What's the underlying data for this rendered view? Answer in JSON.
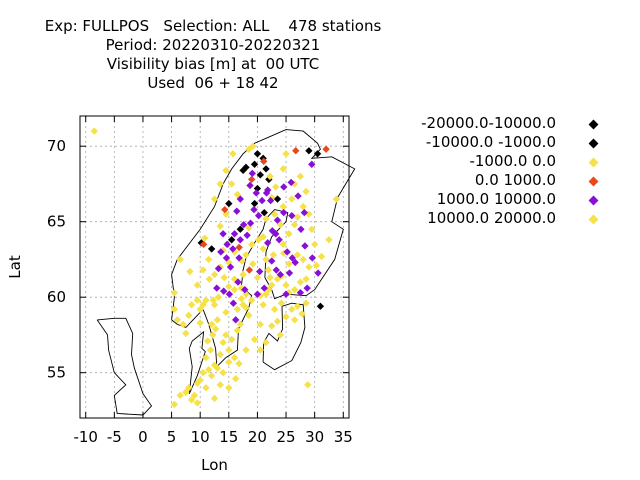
{
  "title_lines": [
    "Exp: FULLPOS   Selection: ALL    478 stations",
    "Period: 20220310-20220321",
    "Visibility bias [m] at  00 UTC",
    "Used  06 + 18 42"
  ],
  "chart_data": {
    "type": "scatter",
    "xlabel": "Lon",
    "ylabel": "Lat",
    "xlim": [
      -11,
      36
    ],
    "ylim": [
      52,
      72
    ],
    "xticks": [
      -10,
      -5,
      0,
      5,
      10,
      15,
      20,
      25,
      30,
      35
    ],
    "yticks": [
      55,
      60,
      65,
      70
    ],
    "grid": true,
    "legend_position": "right",
    "series": [
      {
        "name": "-20000.0-10000.0",
        "color": "#000000",
        "points": []
      },
      {
        "name": "-10000.0 -1000.0",
        "color": "#000000",
        "points": [
          [
            10.2,
            63.6
          ],
          [
            12,
            63.2
          ],
          [
            15.5,
            63.8
          ],
          [
            17.5,
            68.4
          ],
          [
            18,
            68.6
          ],
          [
            19.5,
            68.8
          ],
          [
            20,
            69.5
          ],
          [
            21,
            69.2
          ],
          [
            21.5,
            68.5
          ],
          [
            22,
            67.8
          ],
          [
            23.5,
            66.5
          ],
          [
            19.5,
            66.2
          ],
          [
            20,
            67.2
          ],
          [
            17,
            64.5
          ],
          [
            15,
            66.2
          ],
          [
            30.5,
            69.5
          ],
          [
            29,
            69.7
          ],
          [
            31,
            59.4
          ],
          [
            20.5,
            68.1
          ],
          [
            21.2,
            65.6
          ]
        ]
      },
      {
        "name": "-1000.0 0.0",
        "color": "#f5e14a",
        "points": [
          [
            -8.5,
            71
          ],
          [
            5.5,
            52.9
          ],
          [
            6.5,
            53.5
          ],
          [
            7.5,
            53.7
          ],
          [
            8,
            54
          ],
          [
            9,
            53.5
          ],
          [
            9.5,
            54.3
          ],
          [
            10,
            54.5
          ],
          [
            10.5,
            55
          ],
          [
            11,
            54
          ],
          [
            11.5,
            55.2
          ],
          [
            12,
            54.8
          ],
          [
            12.5,
            55.5
          ],
          [
            13,
            55.3
          ],
          [
            13.5,
            54.2
          ],
          [
            14,
            55
          ],
          [
            12.5,
            53.3
          ],
          [
            9.5,
            53
          ],
          [
            8.5,
            53.2
          ],
          [
            11,
            56
          ],
          [
            11.8,
            56.5
          ],
          [
            12.2,
            57.5
          ],
          [
            12,
            58.2
          ],
          [
            13,
            58.5
          ],
          [
            14,
            57
          ],
          [
            14.5,
            57.5
          ],
          [
            15,
            56.5
          ],
          [
            16,
            56
          ],
          [
            15.5,
            57.2
          ],
          [
            16.5,
            57.8
          ],
          [
            17,
            58.2
          ],
          [
            16.5,
            59.2
          ],
          [
            17.5,
            59.5
          ],
          [
            18,
            59.3
          ],
          [
            18.5,
            58.8
          ],
          [
            18,
            60.2
          ],
          [
            17.2,
            60.6
          ],
          [
            16,
            60.5
          ],
          [
            15,
            60.7
          ],
          [
            14.2,
            61.3
          ],
          [
            13.2,
            60
          ],
          [
            12.5,
            59.5
          ],
          [
            11,
            59.8
          ],
          [
            10.5,
            59.5
          ],
          [
            10,
            59.2
          ],
          [
            9.5,
            59.8
          ],
          [
            8.5,
            59.5
          ],
          [
            8,
            58.8
          ],
          [
            7,
            58.2
          ],
          [
            6,
            58.5
          ],
          [
            5.5,
            59.2
          ],
          [
            5.5,
            60.3
          ],
          [
            9.5,
            60.8
          ],
          [
            10.5,
            61.8
          ],
          [
            11.5,
            62.5
          ],
          [
            12.5,
            61.5
          ],
          [
            13.5,
            62
          ],
          [
            14,
            63.1
          ],
          [
            15,
            62.3
          ],
          [
            16,
            61.2
          ],
          [
            17.5,
            61.5
          ],
          [
            18,
            62.8
          ],
          [
            19,
            63.5
          ],
          [
            20.2,
            63.8
          ],
          [
            21,
            63.2
          ],
          [
            21.5,
            62.5
          ],
          [
            22.2,
            61.3
          ],
          [
            22,
            60.5
          ],
          [
            21.5,
            60.2
          ],
          [
            22.5,
            60.8
          ],
          [
            23.5,
            61.2
          ],
          [
            24.2,
            61.4
          ],
          [
            25,
            60.8
          ],
          [
            25.5,
            60.3
          ],
          [
            26.5,
            60.5
          ],
          [
            27.5,
            61
          ],
          [
            28.5,
            61.2
          ],
          [
            29,
            62
          ],
          [
            28,
            62.5
          ],
          [
            27,
            62.8
          ],
          [
            25.5,
            62.2
          ],
          [
            24.5,
            63.5
          ],
          [
            25.5,
            64.2
          ],
          [
            26.5,
            64.8
          ],
          [
            27,
            65.3
          ],
          [
            28,
            66
          ],
          [
            29,
            65.5
          ],
          [
            29.5,
            64.5
          ],
          [
            30,
            63.5
          ],
          [
            26.5,
            67.5
          ],
          [
            27.5,
            68
          ],
          [
            25,
            69.5
          ],
          [
            24.5,
            68.5
          ],
          [
            23.2,
            67.3
          ],
          [
            22.5,
            66.6
          ],
          [
            26,
            66.5
          ],
          [
            28.5,
            67
          ],
          [
            24.5,
            66
          ],
          [
            23,
            65.5
          ],
          [
            24,
            64.8
          ],
          [
            21.5,
            65.2
          ],
          [
            22.2,
            68
          ],
          [
            19.2,
            70
          ],
          [
            18.5,
            69.8
          ],
          [
            15.7,
            69.5
          ],
          [
            14.5,
            68.4
          ],
          [
            13.5,
            67.5
          ],
          [
            12.5,
            66.5
          ],
          [
            15.5,
            67.5
          ],
          [
            16.5,
            66.8
          ],
          [
            14.5,
            65.5
          ],
          [
            13.5,
            64.7
          ],
          [
            16,
            63
          ],
          [
            17.3,
            62.4
          ],
          [
            7.5,
            57.6
          ],
          [
            11.3,
            57.1
          ],
          [
            13.5,
            56.2
          ],
          [
            15,
            55.7
          ],
          [
            16.2,
            54.6
          ],
          [
            18,
            56.5
          ],
          [
            19.5,
            57.2
          ],
          [
            20.5,
            56.5
          ],
          [
            21.5,
            57
          ],
          [
            22.5,
            58.1
          ],
          [
            24,
            57.5
          ],
          [
            23.5,
            58.4
          ],
          [
            25,
            58.7
          ],
          [
            26,
            59.2
          ],
          [
            27,
            59.4
          ],
          [
            28.5,
            59.6
          ],
          [
            24.2,
            59.6
          ],
          [
            23,
            59.2
          ],
          [
            21,
            59.5
          ],
          [
            20.5,
            60.1
          ],
          [
            20,
            61.3
          ],
          [
            19.2,
            62.2
          ],
          [
            22.8,
            62.8
          ],
          [
            18.5,
            64.6
          ],
          [
            21,
            64
          ],
          [
            28.8,
            54.2
          ],
          [
            33.8,
            66.5
          ],
          [
            32.5,
            63.8
          ],
          [
            31.2,
            62.7
          ],
          [
            30.3,
            62.1
          ],
          [
            15,
            54
          ],
          [
            16.8,
            55.6
          ],
          [
            12.7,
            57.9
          ],
          [
            10,
            58.3
          ],
          [
            14.5,
            59
          ],
          [
            19,
            59.8
          ],
          [
            27.8,
            58.9
          ],
          [
            17.2,
            59.9
          ],
          [
            11.6,
            61.2
          ],
          [
            8.2,
            61.7
          ],
          [
            6.5,
            62.5
          ],
          [
            10.8,
            63.9
          ],
          [
            20.5,
            58.2
          ],
          [
            24.6,
            62.9
          ],
          [
            26.5,
            58.5
          ]
        ]
      },
      {
        "name": "0.0 1000.0",
        "color": "#e8481c",
        "points": [
          [
            10.6,
            63.5
          ],
          [
            14.3,
            65.8
          ],
          [
            16.8,
            63.3
          ],
          [
            18.6,
            61.8
          ],
          [
            19,
            67.8
          ],
          [
            21.1,
            69
          ],
          [
            26.7,
            69.7
          ],
          [
            32,
            69.8
          ]
        ]
      },
      {
        "name": "1000.0 10000.0",
        "color": "#8a0fd6",
        "points": [
          [
            15.3,
            62
          ],
          [
            16.8,
            62.6
          ],
          [
            16,
            64.2
          ],
          [
            17.6,
            64.8
          ],
          [
            18.8,
            64.9
          ],
          [
            20.2,
            65.4
          ],
          [
            20.8,
            66.4
          ],
          [
            19.8,
            66.9
          ],
          [
            21.8,
            67.1
          ],
          [
            22.3,
            66.4
          ],
          [
            23.5,
            65.1
          ],
          [
            22.6,
            64.4
          ],
          [
            23.8,
            63.8
          ],
          [
            25.2,
            63
          ],
          [
            26.6,
            62.3
          ],
          [
            25.6,
            61.6
          ],
          [
            21.2,
            60.6
          ],
          [
            20.4,
            61.7
          ],
          [
            23.3,
            61.8
          ],
          [
            24.6,
            65.6
          ],
          [
            26,
            65.4
          ],
          [
            27.6,
            64.5
          ],
          [
            28.3,
            63.4
          ],
          [
            29.6,
            62.6
          ],
          [
            30.6,
            61.6
          ],
          [
            28.7,
            60.6
          ],
          [
            27.5,
            60.3
          ],
          [
            17,
            66.5
          ],
          [
            16.4,
            65.7
          ],
          [
            15.7,
            63.2
          ],
          [
            14.6,
            62.6
          ],
          [
            13.2,
            61.9
          ],
          [
            14,
            64.2
          ],
          [
            15.1,
            60.2
          ],
          [
            17.8,
            60.5
          ],
          [
            12.9,
            60.6
          ],
          [
            16.2,
            58.5
          ],
          [
            19.1,
            68.2
          ],
          [
            24.6,
            67.3
          ],
          [
            27.1,
            66.7
          ],
          [
            28.2,
            65.6
          ],
          [
            25.9,
            67.6
          ],
          [
            29.5,
            68.8
          ],
          [
            21.6,
            66.9
          ],
          [
            19.4,
            65.8
          ],
          [
            18.2,
            64.1
          ],
          [
            17,
            63.8
          ],
          [
            14.7,
            63.5
          ],
          [
            13.6,
            63
          ],
          [
            21.8,
            63.6
          ],
          [
            22.5,
            62.4
          ],
          [
            24,
            61.5
          ],
          [
            26.1,
            62.6
          ],
          [
            25,
            60.2
          ],
          [
            20,
            60.2
          ],
          [
            18.7,
            67.4
          ],
          [
            23.2,
            64.2
          ],
          [
            16.6,
            61
          ],
          [
            15.8,
            59.6
          ],
          [
            14.1,
            60.4
          ]
        ]
      },
      {
        "name": "10000.0 20000.0",
        "color": "#f5e14a",
        "points": [
          [
            12.3,
            59.8
          ],
          [
            21.9,
            61.8
          ]
        ]
      }
    ]
  }
}
